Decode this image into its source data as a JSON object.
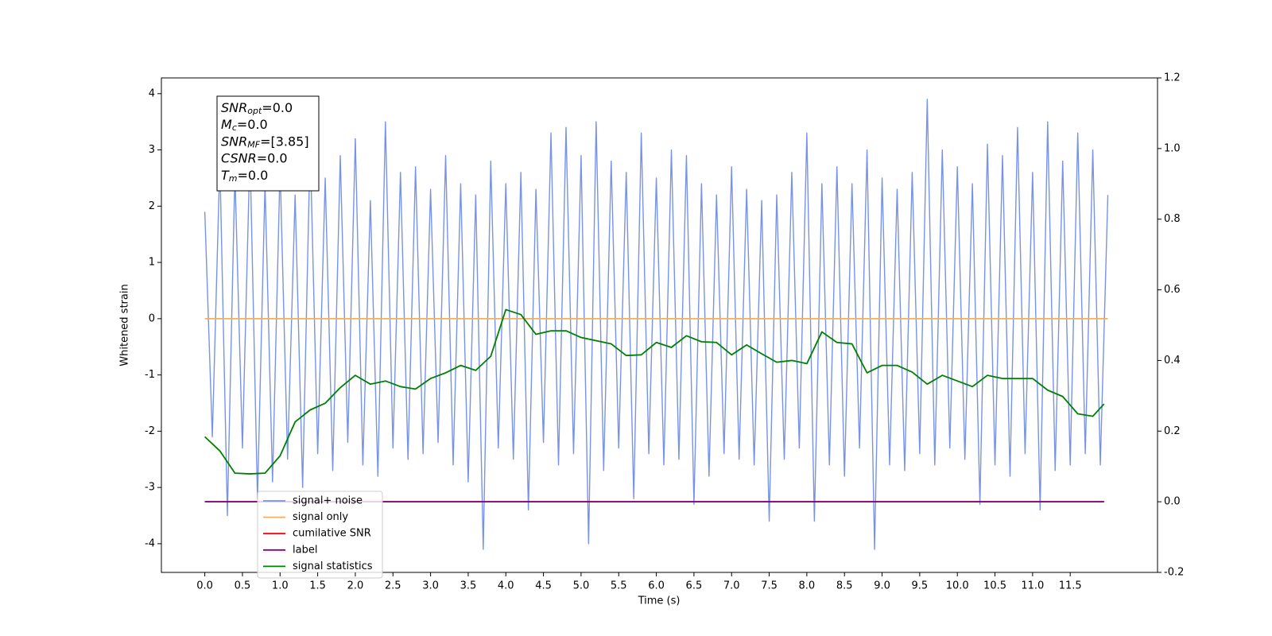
{
  "chart_data": {
    "type": "line",
    "xlabel": "Time (s)",
    "ylabel": "Whitened strain",
    "xlim": [
      -0.577,
      12.66
    ],
    "ylim": [
      -4.51,
      4.28
    ],
    "y2lim": [
      -0.2,
      1.2
    ],
    "xticks": [
      {
        "value": 0,
        "label": "0.0"
      },
      0.5,
      {
        "value": 1,
        "label": "1.0"
      },
      1.5,
      {
        "value": 2,
        "label": "2.0"
      },
      2.5,
      {
        "value": 3,
        "label": "3.0"
      },
      3.5,
      {
        "value": 4,
        "label": "4.0"
      },
      4.5,
      {
        "value": 5,
        "label": "5.0"
      },
      5.5,
      {
        "value": 6,
        "label": "6.0"
      },
      6.5,
      {
        "value": 7,
        "label": "7.0"
      },
      7.5,
      {
        "value": 8,
        "label": "8.0"
      },
      8.5,
      {
        "value": 9,
        "label": "9.0"
      },
      9.5,
      {
        "value": 10,
        "label": "10.0"
      },
      10.5,
      {
        "value": 11,
        "label": "11.0"
      },
      11.5
    ],
    "yticks": [
      -4,
      -3,
      -2,
      -1,
      0,
      1,
      2,
      3,
      4
    ],
    "y2ticks": [
      -0.2,
      {
        "value": 0,
        "label": "0.0"
      },
      0.2,
      0.4,
      0.6,
      0.8,
      {
        "value": 1,
        "label": "1.0"
      },
      1.2
    ],
    "legend": "lower left",
    "annotation": [
      {
        "symbol": "SNR",
        "sub": "opt",
        "text": "=0.0"
      },
      {
        "symbol": "M",
        "sub": "c",
        "text": "=0.0"
      },
      {
        "symbol": "SNR",
        "sub": "MF",
        "text": "=[3.85]"
      },
      {
        "symbol": "CSNR",
        "text": "=0.0"
      },
      {
        "symbol": "T",
        "sub": "m",
        "text": "=0.0"
      }
    ],
    "series": [
      {
        "name": "signal+ noise",
        "color": "#7893e6",
        "x": [
          0,
          0.1,
          0.2,
          0.3,
          0.4,
          0.5,
          0.6,
          0.7,
          0.8,
          0.9,
          1,
          1.1,
          1.2,
          1.3,
          1.4,
          1.5,
          1.6,
          1.7,
          1.8,
          1.9,
          2,
          2.1,
          2.2,
          2.3,
          2.4,
          2.5,
          2.6,
          2.7,
          2.8,
          2.9,
          3,
          3.1,
          3.2,
          3.3,
          3.4,
          3.5,
          3.6,
          3.7,
          3.8,
          3.9,
          4,
          4.1,
          4.2,
          4.3,
          4.4,
          4.5,
          4.6,
          4.7,
          4.8,
          4.9,
          5,
          5.1,
          5.2,
          5.3,
          5.4,
          5.5,
          5.6,
          5.7,
          5.8,
          5.9,
          6,
          6.1,
          6.2,
          6.3,
          6.4,
          6.5,
          6.6,
          6.7,
          6.8,
          6.9,
          7,
          7.1,
          7.2,
          7.3,
          7.4,
          7.5,
          7.6,
          7.7,
          7.8,
          7.9,
          8,
          8.1,
          8.2,
          8.3,
          8.4,
          8.5,
          8.6,
          8.7,
          8.8,
          8.9,
          9,
          9.1,
          9.2,
          9.3,
          9.4,
          9.5,
          9.6,
          9.7,
          9.8,
          9.9,
          10,
          10.1,
          10.2,
          10.3,
          10.4,
          10.5,
          10.6,
          10.7,
          10.8,
          10.9,
          11,
          11.1,
          11.2,
          11.3,
          11.4,
          11.5,
          11.6,
          11.7,
          11.8,
          11.9,
          12
        ],
        "values": [
          1.9,
          -2.1,
          2.8,
          -3.5,
          2.6,
          -2.3,
          3.0,
          -3.2,
          2.4,
          -2.9,
          2.7,
          -2.5,
          2.2,
          -3.0,
          3.1,
          -2.4,
          2.5,
          -2.7,
          2.9,
          -2.2,
          3.2,
          -2.6,
          2.1,
          -2.8,
          3.5,
          -2.3,
          2.6,
          -2.5,
          2.7,
          -2.4,
          2.3,
          -2.2,
          2.9,
          -2.6,
          2.4,
          -2.9,
          2.2,
          -4.1,
          2.8,
          -2.3,
          2.4,
          -2.5,
          2.6,
          -3.4,
          2.3,
          -2.2,
          3.3,
          -2.6,
          3.4,
          -2.4,
          2.9,
          -4.0,
          3.5,
          -2.7,
          2.8,
          -2.3,
          2.6,
          -3.2,
          3.3,
          -2.4,
          2.5,
          -2.6,
          3.0,
          -2.5,
          2.9,
          -3.3,
          2.4,
          -2.8,
          2.2,
          -2.4,
          2.7,
          -2.5,
          2.3,
          -2.6,
          2.1,
          -3.6,
          2.2,
          -2.5,
          2.6,
          -2.3,
          3.3,
          -3.6,
          2.4,
          -2.6,
          2.7,
          -2.8,
          2.4,
          -2.3,
          3.0,
          -4.1,
          2.5,
          -2.6,
          2.3,
          -2.7,
          2.6,
          -2.4,
          3.9,
          -2.6,
          3.0,
          -2.3,
          2.7,
          -2.5,
          2.4,
          -3.3,
          3.1,
          -2.6,
          2.9,
          -2.8,
          3.4,
          -2.4,
          2.6,
          -3.4,
          3.5,
          -2.7,
          2.8,
          -2.6,
          3.3,
          -2.4,
          3.0,
          -2.6,
          2.2
        ]
      },
      {
        "name": "signal only",
        "color": "#f0b060",
        "x": [
          0,
          12
        ],
        "values": [
          0,
          0
        ]
      },
      {
        "name": "cumilative SNR",
        "color": "#ff0000",
        "axis": "y2",
        "x": [
          0,
          11.95
        ],
        "values": [
          0,
          0
        ]
      },
      {
        "name": "label",
        "color": "#800080",
        "axis": "y2",
        "x": [
          0,
          11.95
        ],
        "values": [
          0,
          0
        ]
      },
      {
        "name": "signal statistics",
        "color": "#008000",
        "axis": "y2",
        "x": [
          0,
          0.2,
          0.4,
          0.6,
          0.8,
          1,
          1.2,
          1.4,
          1.6,
          1.8,
          2,
          2.2,
          2.4,
          2.6,
          2.8,
          3,
          3.2,
          3.4,
          3.6,
          3.8,
          4,
          4.2,
          4.4,
          4.6,
          4.8,
          5,
          5.2,
          5.4,
          5.6,
          5.8,
          6,
          6.2,
          6.4,
          6.6,
          6.8,
          7,
          7.2,
          7.4,
          7.6,
          7.8,
          8,
          8.2,
          8.4,
          8.6,
          8.8,
          9,
          9.2,
          9.4,
          9.6,
          9.8,
          10,
          10.2,
          10.4,
          10.6,
          10.8,
          11,
          11.2,
          11.4,
          11.6,
          11.8,
          11.95
        ],
        "values": [
          0.184,
          0.144,
          0.081,
          0.079,
          0.081,
          0.13,
          0.226,
          0.26,
          0.279,
          0.323,
          0.358,
          0.333,
          0.342,
          0.326,
          0.319,
          0.349,
          0.365,
          0.386,
          0.372,
          0.412,
          0.544,
          0.53,
          0.474,
          0.484,
          0.484,
          0.465,
          0.456,
          0.447,
          0.414,
          0.416,
          0.451,
          0.437,
          0.47,
          0.453,
          0.451,
          0.416,
          0.444,
          0.419,
          0.395,
          0.4,
          0.391,
          0.481,
          0.451,
          0.447,
          0.365,
          0.386,
          0.386,
          0.367,
          0.333,
          0.358,
          0.342,
          0.326,
          0.358,
          0.349,
          0.349,
          0.349,
          0.316,
          0.298,
          0.249,
          0.242,
          0.277
        ]
      }
    ]
  }
}
